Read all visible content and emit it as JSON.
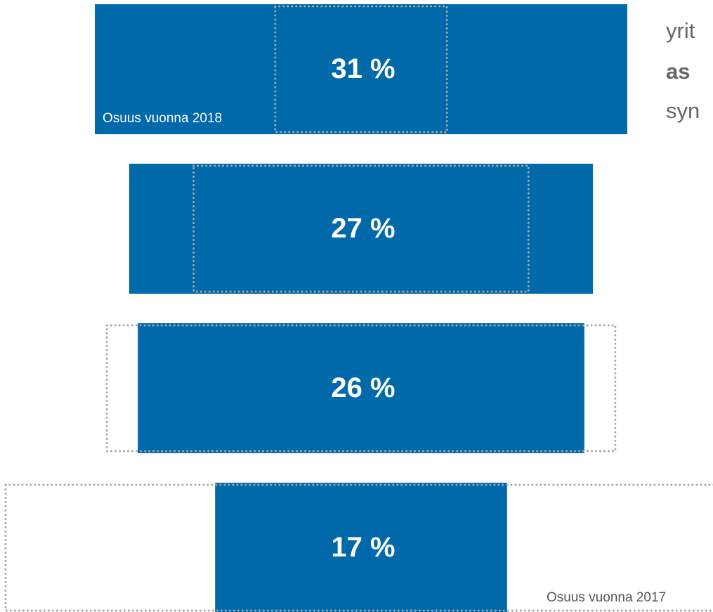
{
  "chart_data": {
    "type": "funnel",
    "series": [
      {
        "name": "Osuus vuonna 2018",
        "color": "#0069aa",
        "values": [
          31,
          27,
          26,
          17
        ],
        "value_labels": [
          "31 %",
          "27 %",
          "26 %",
          "17 %"
        ]
      },
      {
        "name": "Osuus vuonna 2017",
        "color": "#a6a6a6",
        "values": [
          10,
          19.5,
          29.6,
          41.4
        ]
      }
    ],
    "annotations": [
      "yrit",
      "as",
      "syn"
    ]
  }
}
